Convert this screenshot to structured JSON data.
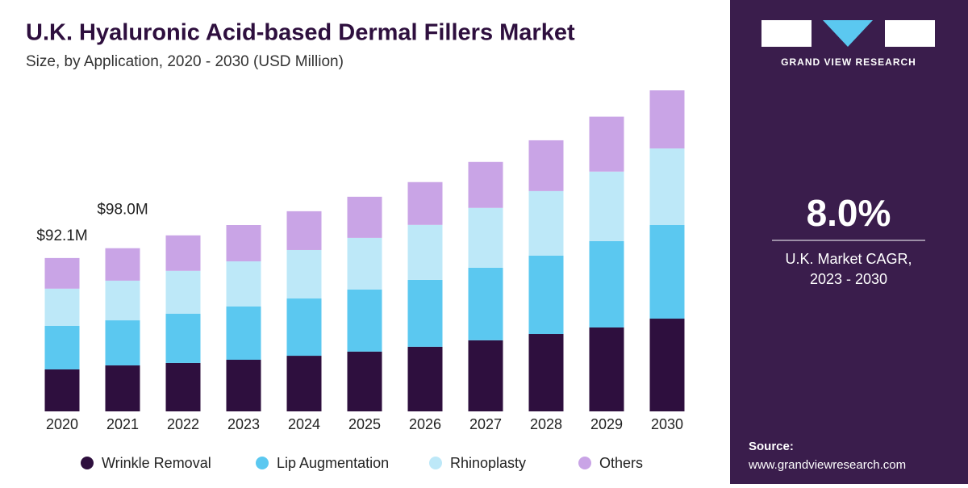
{
  "chart_data": {
    "type": "stacked_bar",
    "title": "U.K. Hyaluronic Acid-based Dermal Fillers Market",
    "subtitle": "Size, by Application, 2020 - 2030 (USD Million)",
    "categories": [
      "2020",
      "2021",
      "2022",
      "2023",
      "2024",
      "2025",
      "2026",
      "2027",
      "2028",
      "2029",
      "2030"
    ],
    "series": [
      {
        "name": "Wrinkle Removal",
        "color": "#2e0f3e",
        "values": [
          25.2,
          27.6,
          29.1,
          31.0,
          33.4,
          35.9,
          38.8,
          42.7,
          46.5,
          50.4,
          55.7
        ]
      },
      {
        "name": "Lip Augmentation",
        "color": "#5bc8f0",
        "values": [
          26.2,
          27.1,
          29.6,
          32.0,
          34.4,
          37.3,
          40.2,
          43.6,
          47.0,
          51.9,
          56.2
        ]
      },
      {
        "name": "Rhinoplasty",
        "color": "#bde8f8",
        "values": [
          22.3,
          23.8,
          25.7,
          27.1,
          29.1,
          31.0,
          33.0,
          35.9,
          38.8,
          41.7,
          46.0
        ]
      },
      {
        "name": "Others",
        "color": "#c9a4e6",
        "values": [
          18.4,
          19.5,
          21.3,
          21.8,
          23.3,
          24.7,
          25.7,
          27.6,
          30.5,
          33.0,
          34.9
        ]
      }
    ],
    "total_labels": [
      {
        "value": 92.1,
        "label": "$92.1M"
      },
      {
        "value": 98.0,
        "label": "$98.0M"
      }
    ],
    "legend": "bottom"
  },
  "panel": {
    "brand": "GRAND VIEW RESEARCH",
    "cagr": "8.0%",
    "cagr_caption": [
      "U.K. Market CAGR,",
      "2023 - 2030"
    ],
    "source_label": "Source:",
    "source_url": "www.grandviewresearch.com"
  }
}
